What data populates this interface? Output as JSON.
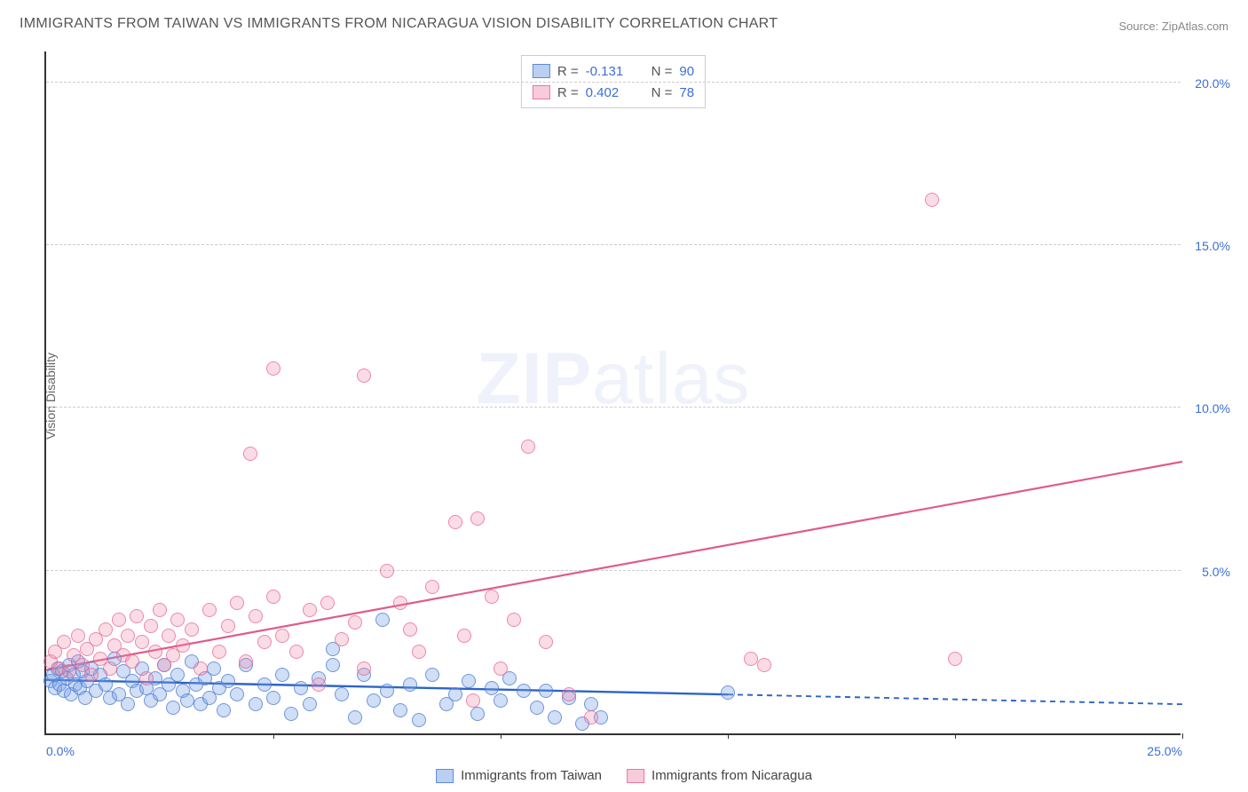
{
  "title": "IMMIGRANTS FROM TAIWAN VS IMMIGRANTS FROM NICARAGUA VISION DISABILITY CORRELATION CHART",
  "source": "Source: ZipAtlas.com",
  "y_axis_label": "Vision Disability",
  "watermark_bold": "ZIP",
  "watermark_rest": "atlas",
  "chart": {
    "type": "scatter",
    "xlim": [
      0,
      25
    ],
    "ylim": [
      0,
      21
    ],
    "x_ticks": [
      0,
      5,
      10,
      15,
      20,
      25
    ],
    "x_tick_labels": [
      "0.0%",
      "",
      "",
      "",
      "",
      "25.0%"
    ],
    "y_ticks": [
      5,
      10,
      15,
      20
    ],
    "y_tick_labels": [
      "5.0%",
      "10.0%",
      "15.0%",
      "20.0%"
    ],
    "grid_color": "#cccccc",
    "background_color": "#ffffff",
    "axis_color": "#333333",
    "tick_label_color": "#3b6fd6",
    "marker_radius": 8,
    "series": [
      {
        "name": "Immigrants from Taiwan",
        "color_fill": "rgba(120,160,230,0.35)",
        "color_stroke": "rgba(70,120,210,0.7)",
        "r": -0.131,
        "n": 90,
        "regression": {
          "x1": 0,
          "y1": 1.7,
          "x2": 15,
          "y2": 1.25,
          "color": "#2d64c9",
          "width": 2.4,
          "dashed_after_x": 15,
          "x_end": 25,
          "y_end": 0.95
        },
        "points": [
          [
            0.1,
            1.6
          ],
          [
            0.15,
            1.8
          ],
          [
            0.2,
            1.4
          ],
          [
            0.25,
            2.0
          ],
          [
            0.3,
            1.5
          ],
          [
            0.35,
            1.9
          ],
          [
            0.4,
            1.3
          ],
          [
            0.45,
            1.7
          ],
          [
            0.5,
            2.1
          ],
          [
            0.55,
            1.2
          ],
          [
            0.6,
            1.8
          ],
          [
            0.65,
            1.5
          ],
          [
            0.7,
            2.2
          ],
          [
            0.75,
            1.4
          ],
          [
            0.8,
            1.9
          ],
          [
            0.85,
            1.1
          ],
          [
            0.9,
            1.6
          ],
          [
            1.0,
            2.0
          ],
          [
            1.1,
            1.3
          ],
          [
            1.2,
            1.8
          ],
          [
            1.3,
            1.5
          ],
          [
            1.4,
            1.1
          ],
          [
            1.5,
            2.3
          ],
          [
            1.6,
            1.2
          ],
          [
            1.7,
            1.9
          ],
          [
            1.8,
            0.9
          ],
          [
            1.9,
            1.6
          ],
          [
            2.0,
            1.3
          ],
          [
            2.1,
            2.0
          ],
          [
            2.2,
            1.4
          ],
          [
            2.3,
            1.0
          ],
          [
            2.4,
            1.7
          ],
          [
            2.5,
            1.2
          ],
          [
            2.6,
            2.1
          ],
          [
            2.7,
            1.5
          ],
          [
            2.8,
            0.8
          ],
          [
            2.9,
            1.8
          ],
          [
            3.0,
            1.3
          ],
          [
            3.1,
            1.0
          ],
          [
            3.2,
            2.2
          ],
          [
            3.3,
            1.5
          ],
          [
            3.4,
            0.9
          ],
          [
            3.5,
            1.7
          ],
          [
            3.6,
            1.1
          ],
          [
            3.7,
            2.0
          ],
          [
            3.8,
            1.4
          ],
          [
            3.9,
            0.7
          ],
          [
            4.0,
            1.6
          ],
          [
            4.2,
            1.2
          ],
          [
            4.4,
            2.1
          ],
          [
            4.6,
            0.9
          ],
          [
            4.8,
            1.5
          ],
          [
            5.0,
            1.1
          ],
          [
            5.2,
            1.8
          ],
          [
            5.4,
            0.6
          ],
          [
            5.6,
            1.4
          ],
          [
            5.8,
            0.9
          ],
          [
            6.0,
            1.7
          ],
          [
            6.3,
            2.1
          ],
          [
            6.3,
            2.6
          ],
          [
            6.5,
            1.2
          ],
          [
            6.8,
            0.5
          ],
          [
            7.0,
            1.8
          ],
          [
            7.2,
            1.0
          ],
          [
            7.4,
            3.5
          ],
          [
            7.5,
            1.3
          ],
          [
            7.8,
            0.7
          ],
          [
            8.0,
            1.5
          ],
          [
            8.2,
            0.4
          ],
          [
            8.5,
            1.8
          ],
          [
            8.8,
            0.9
          ],
          [
            9.0,
            1.2
          ],
          [
            9.3,
            1.6
          ],
          [
            9.5,
            0.6
          ],
          [
            9.8,
            1.4
          ],
          [
            10.0,
            1.0
          ],
          [
            10.2,
            1.7
          ],
          [
            10.5,
            1.3
          ],
          [
            10.8,
            0.8
          ],
          [
            11.0,
            1.3
          ],
          [
            11.2,
            0.5
          ],
          [
            11.5,
            1.1
          ],
          [
            11.8,
            0.3
          ],
          [
            12.0,
            0.9
          ],
          [
            12.2,
            0.5
          ],
          [
            15.0,
            1.25
          ]
        ]
      },
      {
        "name": "Immigrants from Nicaragua",
        "color_fill": "rgba(240,140,170,0.30)",
        "color_stroke": "rgba(230,90,140,0.65)",
        "r": 0.402,
        "n": 78,
        "regression": {
          "x1": 0,
          "y1": 2.0,
          "x2": 25,
          "y2": 8.4,
          "color": "#e05a8c",
          "width": 2.2,
          "dashed_after_x": null
        },
        "points": [
          [
            0.1,
            2.2
          ],
          [
            0.2,
            2.5
          ],
          [
            0.3,
            2.0
          ],
          [
            0.4,
            2.8
          ],
          [
            0.5,
            1.9
          ],
          [
            0.6,
            2.4
          ],
          [
            0.7,
            3.0
          ],
          [
            0.8,
            2.1
          ],
          [
            0.9,
            2.6
          ],
          [
            1.0,
            1.8
          ],
          [
            1.1,
            2.9
          ],
          [
            1.2,
            2.3
          ],
          [
            1.3,
            3.2
          ],
          [
            1.4,
            2.0
          ],
          [
            1.5,
            2.7
          ],
          [
            1.6,
            3.5
          ],
          [
            1.7,
            2.4
          ],
          [
            1.8,
            3.0
          ],
          [
            1.9,
            2.2
          ],
          [
            2.0,
            3.6
          ],
          [
            2.1,
            2.8
          ],
          [
            2.2,
            1.7
          ],
          [
            2.3,
            3.3
          ],
          [
            2.4,
            2.5
          ],
          [
            2.5,
            3.8
          ],
          [
            2.6,
            2.1
          ],
          [
            2.7,
            3.0
          ],
          [
            2.8,
            2.4
          ],
          [
            2.9,
            3.5
          ],
          [
            3.0,
            2.7
          ],
          [
            3.2,
            3.2
          ],
          [
            3.4,
            2.0
          ],
          [
            3.6,
            3.8
          ],
          [
            3.8,
            2.5
          ],
          [
            4.0,
            3.3
          ],
          [
            4.2,
            4.0
          ],
          [
            4.4,
            2.2
          ],
          [
            4.6,
            3.6
          ],
          [
            4.8,
            2.8
          ],
          [
            5.0,
            4.2
          ],
          [
            4.5,
            8.6
          ],
          [
            5.0,
            11.2
          ],
          [
            5.2,
            3.0
          ],
          [
            5.5,
            2.5
          ],
          [
            5.8,
            3.8
          ],
          [
            6.0,
            1.5
          ],
          [
            6.2,
            4.0
          ],
          [
            6.5,
            2.9
          ],
          [
            6.8,
            3.4
          ],
          [
            7.0,
            2.0
          ],
          [
            7.0,
            11.0
          ],
          [
            7.5,
            5.0
          ],
          [
            7.8,
            4.0
          ],
          [
            8.0,
            3.2
          ],
          [
            8.2,
            2.5
          ],
          [
            8.5,
            4.5
          ],
          [
            9.0,
            6.5
          ],
          [
            9.2,
            3.0
          ],
          [
            9.4,
            1.0
          ],
          [
            9.5,
            6.6
          ],
          [
            9.8,
            4.2
          ],
          [
            10.0,
            2.0
          ],
          [
            10.3,
            3.5
          ],
          [
            10.6,
            8.8
          ],
          [
            11.0,
            2.8
          ],
          [
            11.5,
            1.2
          ],
          [
            12.0,
            0.5
          ],
          [
            15.5,
            2.3
          ],
          [
            15.8,
            2.1
          ],
          [
            19.5,
            16.4
          ],
          [
            20.0,
            2.3
          ]
        ]
      }
    ]
  },
  "legend_top": {
    "r_label": "R =",
    "n_label": "N ="
  },
  "legend_bottom": [
    {
      "color": "blue",
      "label": "Immigrants from Taiwan"
    },
    {
      "color": "pink",
      "label": "Immigrants from Nicaragua"
    }
  ]
}
